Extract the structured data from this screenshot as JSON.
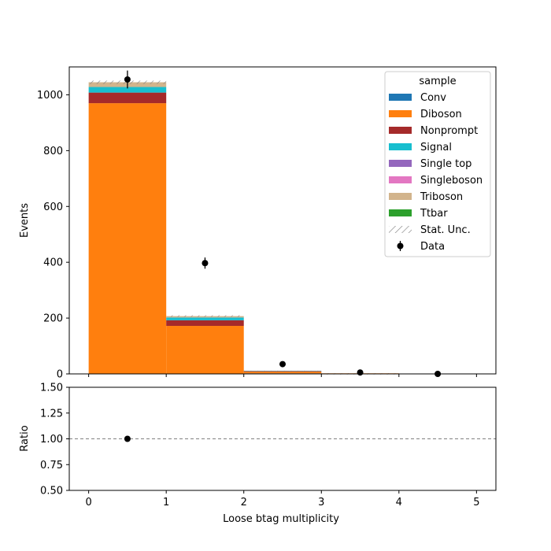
{
  "chart_data": [
    {
      "type": "bar",
      "stacked": true,
      "panel": "main",
      "bin_edges": [
        0,
        1,
        2,
        3,
        4,
        5
      ],
      "xlim": [
        -0.25,
        5.25
      ],
      "ylim": [
        0,
        1100
      ],
      "yticks": [
        0,
        200,
        400,
        600,
        800,
        1000
      ],
      "ylabel": "Events",
      "legend": {
        "title": "sample",
        "placement": "top-right"
      },
      "series": [
        {
          "name": "Conv",
          "color": "#1f77b4",
          "values": [
            0,
            0,
            2,
            0,
            0
          ]
        },
        {
          "name": "Diboson",
          "color": "#ff7f0e",
          "values": [
            970,
            172,
            6,
            2,
            0
          ]
        },
        {
          "name": "Nonprompt",
          "color": "#a52a2a",
          "values": [
            38,
            20,
            2,
            0,
            0
          ]
        },
        {
          "name": "Signal",
          "color": "#17becf",
          "values": [
            20,
            10,
            1,
            0,
            0
          ]
        },
        {
          "name": "Single top",
          "color": "#9467bd",
          "values": [
            0,
            0,
            0,
            0,
            0
          ]
        },
        {
          "name": "Singleboson",
          "color": "#e377c2",
          "values": [
            0,
            0,
            0,
            0,
            0
          ]
        },
        {
          "name": "Triboson",
          "color": "#d2b48c",
          "values": [
            17,
            5,
            0,
            0,
            0
          ]
        },
        {
          "name": "Ttbar",
          "color": "#2ca02c",
          "values": [
            0,
            0,
            0,
            0,
            0
          ]
        }
      ],
      "stat_unc": {
        "name": "Stat. Unc.",
        "values": [
          6,
          3,
          0.5,
          0.2,
          0
        ]
      },
      "data": {
        "name": "Data",
        "x": [
          0.5,
          1.5,
          2.5,
          3.5,
          4.5
        ],
        "y": [
          1055,
          397,
          35,
          5,
          0
        ],
        "yerr": [
          32,
          20,
          6,
          2.2,
          0
        ]
      }
    },
    {
      "type": "scatter",
      "panel": "ratio",
      "xlim": [
        -0.25,
        5.25
      ],
      "ylim": [
        0.5,
        1.5
      ],
      "yticks": [
        "0.50",
        "0.75",
        "1.00",
        "1.25",
        "1.50"
      ],
      "xticks": [
        "0",
        "1",
        "2",
        "3",
        "4",
        "5"
      ],
      "xlabel": "Loose btag multiplicity",
      "ylabel": "Ratio",
      "reference_line": 1.0,
      "x": [
        0.5
      ],
      "y": [
        1.0
      ]
    }
  ]
}
